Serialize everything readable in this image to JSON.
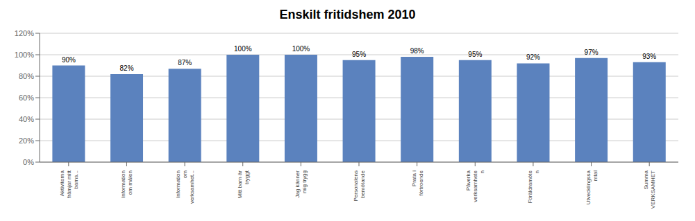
{
  "chart_data": {
    "type": "bar",
    "title": "Enskilt fritidshem 2010",
    "categories": [
      "Aktiviterna\nfrämjar mitt\nbarns...",
      "Information\nom målen",
      "Information\nom\nverksamhet...",
      "Mitt barn är\ntryggt",
      "Jag känner\nmig trygg",
      "Personalens\nbemötande",
      "Prata i\nförtroende",
      "Påverka\nverksamhete\nn",
      "Föräldramöte\nn",
      "Utvecklingssa\nmtal",
      "Summa\nVERKSAMHET"
    ],
    "values": [
      90,
      82,
      87,
      100,
      100,
      95,
      98,
      95,
      92,
      97,
      93
    ],
    "value_labels": [
      "90%",
      "82%",
      "87%",
      "100%",
      "100%",
      "95%",
      "98%",
      "95%",
      "92%",
      "97%",
      "93%"
    ],
    "color": "#5B82BE",
    "ylim": [
      0,
      120
    ],
    "yticks": [
      {
        "value": 0,
        "label": "0%"
      },
      {
        "value": 20,
        "label": "20%"
      },
      {
        "value": 40,
        "label": "40%"
      },
      {
        "value": 60,
        "label": "60%"
      },
      {
        "value": 80,
        "label": "80%"
      },
      {
        "value": 100,
        "label": "100%"
      },
      {
        "value": 120,
        "label": "120%"
      }
    ],
    "grid": true,
    "data_labels": true
  }
}
